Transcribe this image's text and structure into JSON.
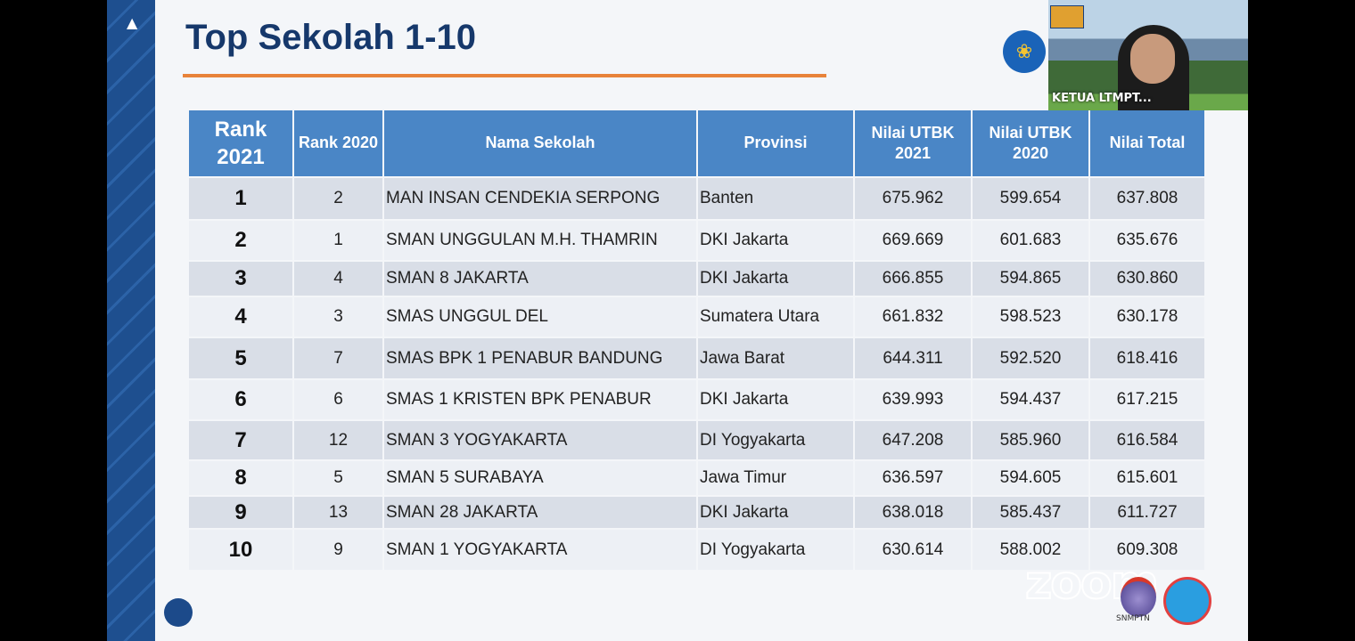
{
  "title": "Top Sekolah 1-10",
  "video": {
    "participant_name": "KETUA LTMPT..."
  },
  "watermark": "zoom",
  "logo_text": "SNMPTN",
  "colors": {
    "header": "#4a86c6",
    "title": "#16386b",
    "accent": "#e8833a"
  },
  "table": {
    "headers": [
      "Rank 2021",
      "Rank 2020",
      "Nama Sekolah",
      "Provinsi",
      "Nilai UTBK 2021",
      "Nilai UTBK 2020",
      "Nilai Total"
    ],
    "rows": [
      [
        "1",
        "2",
        "MAN INSAN CENDEKIA SERPONG",
        "Banten",
        "675.962",
        "599.654",
        "637.808"
      ],
      [
        "2",
        "1",
        "SMAN UNGGULAN M.H. THAMRIN",
        "DKI Jakarta",
        "669.669",
        "601.683",
        "635.676"
      ],
      [
        "3",
        "4",
        "SMAN 8 JAKARTA",
        "DKI Jakarta",
        "666.855",
        "594.865",
        "630.860"
      ],
      [
        "4",
        "3",
        "SMAS UNGGUL DEL",
        "Sumatera Utara",
        "661.832",
        "598.523",
        "630.178"
      ],
      [
        "5",
        "7",
        "SMAS BPK 1 PENABUR BANDUNG",
        "Jawa Barat",
        "644.311",
        "592.520",
        "618.416"
      ],
      [
        "6",
        "6",
        "SMAS 1 KRISTEN BPK PENABUR",
        "DKI Jakarta",
        "639.993",
        "594.437",
        "617.215"
      ],
      [
        "7",
        "12",
        "SMAN 3 YOGYAKARTA",
        "DI Yogyakarta",
        "647.208",
        "585.960",
        "616.584"
      ],
      [
        "8",
        "5",
        "SMAN 5 SURABAYA",
        "Jawa Timur",
        "636.597",
        "594.605",
        "615.601"
      ],
      [
        "9",
        "13",
        "SMAN 28 JAKARTA",
        "DKI Jakarta",
        "638.018",
        "585.437",
        "611.727"
      ],
      [
        "10",
        "9",
        "SMAN 1 YOGYAKARTA",
        "DI Yogyakarta",
        "630.614",
        "588.002",
        "609.308"
      ]
    ]
  }
}
